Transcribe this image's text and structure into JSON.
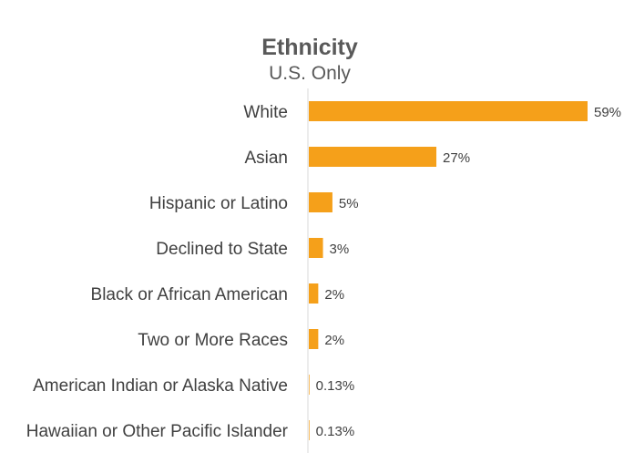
{
  "chart_data": {
    "type": "bar",
    "orientation": "horizontal",
    "title": "Ethnicity",
    "subtitle": "U.S. Only",
    "categories": [
      "White",
      "Asian",
      "Hispanic or Latino",
      "Declined to State",
      "Black or African American",
      "Two or More Races",
      "American Indian or Alaska Native",
      "Hawaiian or Other Pacific Islander"
    ],
    "values": [
      59,
      27,
      5,
      3,
      2,
      2,
      0.13,
      0.13
    ],
    "data_labels": [
      "59%",
      "27%",
      "5%",
      "3%",
      "2%",
      "2%",
      "0.13%",
      "0.13%"
    ],
    "xlim": [
      0,
      60
    ],
    "grid": false,
    "legend": "none",
    "bar_color": "#f5a01a"
  }
}
